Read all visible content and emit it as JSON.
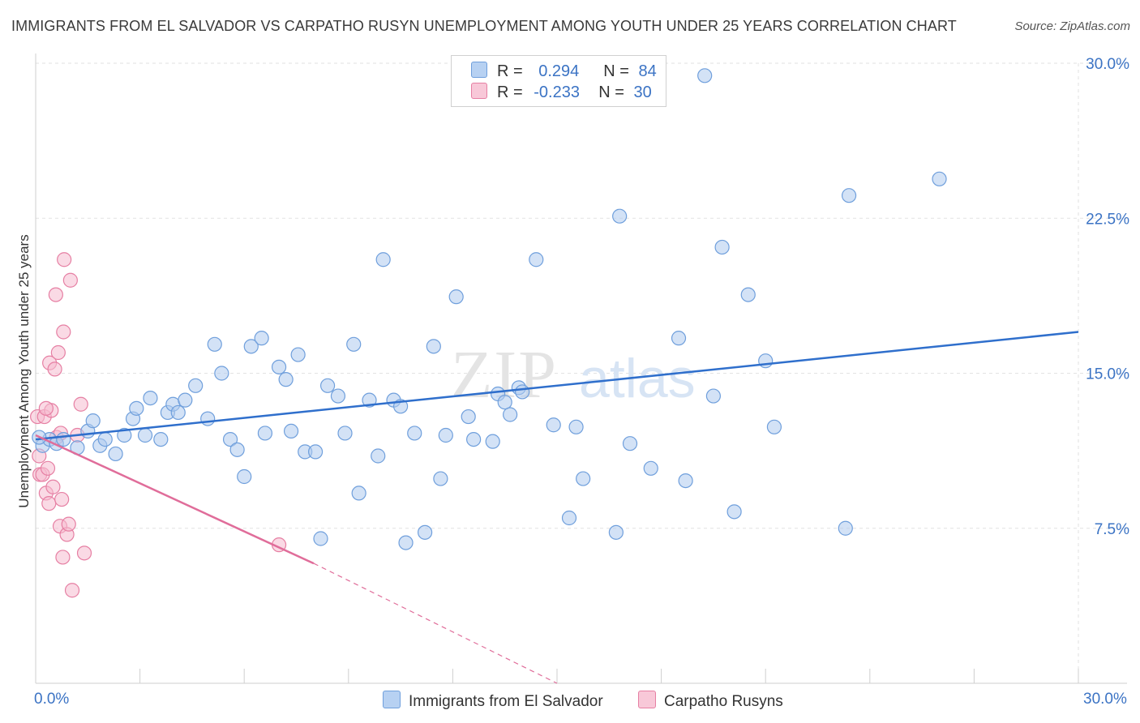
{
  "title": "IMMIGRANTS FROM EL SALVADOR VS CARPATHO RUSYN UNEMPLOYMENT AMONG YOUTH UNDER 25 YEARS CORRELATION CHART",
  "source": "Source: ZipAtlas.com",
  "watermark": "ZIPatlas",
  "legend": {
    "rows": [
      {
        "r_label": "R =",
        "r_value": "0.294",
        "n_label": "N =",
        "n_value": "84"
      },
      {
        "r_label": "R =",
        "r_value": "-0.233",
        "n_label": "N =",
        "n_value": "30"
      }
    ]
  },
  "colors": {
    "blue_fill": "#aecbef",
    "blue_stroke": "#6f9fdc",
    "blue_line": "#2f6fcc",
    "pink_fill": "#f6bcd0",
    "pink_stroke": "#e67fa3",
    "pink_line": "#e06d9a",
    "axis_text": "#3b73c4",
    "grid": "#e2e2e2"
  },
  "chart_data": {
    "type": "scatter",
    "title": "IMMIGRANTS FROM EL SALVADOR VS CARPATHO RUSYN UNEMPLOYMENT AMONG YOUTH UNDER 25 YEARS CORRELATION CHART",
    "xlabel": "",
    "ylabel": "Unemployment Among Youth under 25 years",
    "xlim": [
      0,
      30
    ],
    "ylim": [
      0,
      30
    ],
    "x_tick_labels": [
      "0.0%",
      "30.0%"
    ],
    "y_ticks": [
      7.5,
      15.0,
      22.5,
      30.0
    ],
    "y_tick_labels": [
      "7.5%",
      "15.0%",
      "22.5%",
      "30.0%"
    ],
    "grid": true,
    "legend_position": "top-center",
    "series": [
      {
        "name": "Immigrants from El Salvador",
        "r": 0.294,
        "n": 84,
        "trend": {
          "x0": 0.0,
          "y0": 11.8,
          "x1": 30.0,
          "y1": 17.0
        },
        "points": [
          [
            0.2,
            11.5
          ],
          [
            0.4,
            11.8
          ],
          [
            0.6,
            11.6
          ],
          [
            0.8,
            11.8
          ],
          [
            1.2,
            11.4
          ],
          [
            1.5,
            12.2
          ],
          [
            1.65,
            12.7
          ],
          [
            1.85,
            11.5
          ],
          [
            2.0,
            11.8
          ],
          [
            2.3,
            11.1
          ],
          [
            2.55,
            12.0
          ],
          [
            2.8,
            12.8
          ],
          [
            2.9,
            13.3
          ],
          [
            3.15,
            12.0
          ],
          [
            3.3,
            13.8
          ],
          [
            3.6,
            11.8
          ],
          [
            3.8,
            13.1
          ],
          [
            3.95,
            13.5
          ],
          [
            4.1,
            13.1
          ],
          [
            4.3,
            13.7
          ],
          [
            4.6,
            14.4
          ],
          [
            4.95,
            12.8
          ],
          [
            5.15,
            16.4
          ],
          [
            5.35,
            15.0
          ],
          [
            5.6,
            11.8
          ],
          [
            5.8,
            11.3
          ],
          [
            6.0,
            10.0
          ],
          [
            6.2,
            16.3
          ],
          [
            6.5,
            16.7
          ],
          [
            6.6,
            12.1
          ],
          [
            7.0,
            15.3
          ],
          [
            7.2,
            14.7
          ],
          [
            7.35,
            12.2
          ],
          [
            7.55,
            15.9
          ],
          [
            7.75,
            11.2
          ],
          [
            8.05,
            11.2
          ],
          [
            8.2,
            7.0
          ],
          [
            8.4,
            14.4
          ],
          [
            8.7,
            13.9
          ],
          [
            8.9,
            12.1
          ],
          [
            9.15,
            16.4
          ],
          [
            9.3,
            9.2
          ],
          [
            9.6,
            13.7
          ],
          [
            9.85,
            11.0
          ],
          [
            10.0,
            20.5
          ],
          [
            10.3,
            13.7
          ],
          [
            10.5,
            13.4
          ],
          [
            10.65,
            6.8
          ],
          [
            10.9,
            12.1
          ],
          [
            11.2,
            7.3
          ],
          [
            11.45,
            16.3
          ],
          [
            11.65,
            9.9
          ],
          [
            11.8,
            12.0
          ],
          [
            12.1,
            18.7
          ],
          [
            12.45,
            12.9
          ],
          [
            12.6,
            11.8
          ],
          [
            13.15,
            11.7
          ],
          [
            13.3,
            14.0
          ],
          [
            13.5,
            13.6
          ],
          [
            13.65,
            13.0
          ],
          [
            13.9,
            14.3
          ],
          [
            14.0,
            14.1
          ],
          [
            14.4,
            20.5
          ],
          [
            14.9,
            12.5
          ],
          [
            15.35,
            8.0
          ],
          [
            15.55,
            12.4
          ],
          [
            15.75,
            9.9
          ],
          [
            16.7,
            7.3
          ],
          [
            16.8,
            22.6
          ],
          [
            17.1,
            11.6
          ],
          [
            17.7,
            10.4
          ],
          [
            18.5,
            16.7
          ],
          [
            18.7,
            9.8
          ],
          [
            19.25,
            29.4
          ],
          [
            19.5,
            13.9
          ],
          [
            19.75,
            21.1
          ],
          [
            20.1,
            8.3
          ],
          [
            20.5,
            18.8
          ],
          [
            21.0,
            15.6
          ],
          [
            21.25,
            12.4
          ],
          [
            23.3,
            7.5
          ],
          [
            23.4,
            23.6
          ],
          [
            26.0,
            24.4
          ],
          [
            0.1,
            11.9
          ]
        ]
      },
      {
        "name": "Carpatho Rusyns",
        "r": -0.233,
        "n": 30,
        "trend": {
          "x0": 0.0,
          "y0": 12.0,
          "x1": 8.0,
          "y1": 5.8
        },
        "trend_dashed": {
          "x0": 8.0,
          "y0": 5.8,
          "x1": 15.0,
          "y1": 0.0
        },
        "points": [
          [
            0.05,
            12.9
          ],
          [
            0.1,
            11.0
          ],
          [
            0.12,
            10.1
          ],
          [
            0.2,
            10.1
          ],
          [
            0.25,
            12.9
          ],
          [
            0.3,
            9.2
          ],
          [
            0.35,
            10.4
          ],
          [
            0.38,
            8.7
          ],
          [
            0.4,
            15.5
          ],
          [
            0.45,
            13.2
          ],
          [
            0.5,
            9.5
          ],
          [
            0.55,
            15.2
          ],
          [
            0.58,
            18.8
          ],
          [
            0.6,
            11.9
          ],
          [
            0.65,
            16.0
          ],
          [
            0.7,
            7.6
          ],
          [
            0.72,
            12.1
          ],
          [
            0.75,
            8.9
          ],
          [
            0.78,
            6.1
          ],
          [
            0.8,
            17.0
          ],
          [
            0.82,
            20.5
          ],
          [
            0.9,
            7.2
          ],
          [
            0.95,
            7.7
          ],
          [
            1.0,
            19.5
          ],
          [
            1.05,
            4.5
          ],
          [
            1.3,
            13.5
          ],
          [
            1.4,
            6.3
          ],
          [
            1.2,
            12.0
          ],
          [
            0.3,
            13.3
          ],
          [
            7.0,
            6.7
          ]
        ]
      }
    ]
  },
  "bottom_legend": {
    "items": [
      {
        "label": "Immigrants from El Salvador"
      },
      {
        "label": "Carpatho Rusyns"
      }
    ]
  },
  "axis": {
    "x_left": "0.0%",
    "x_right": "30.0%"
  }
}
